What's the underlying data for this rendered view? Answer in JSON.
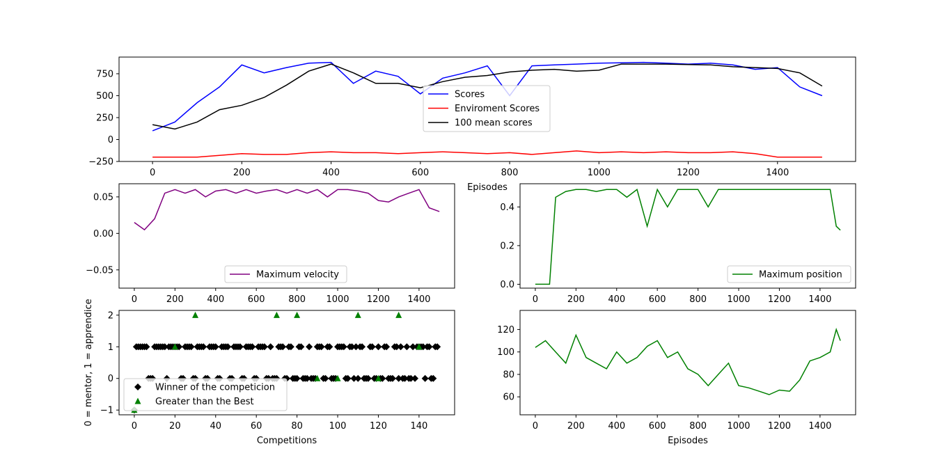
{
  "chart_data": [
    {
      "type": "line",
      "title": "",
      "xlabel": "Episodes",
      "ylabel": "",
      "xlim": [
        -75,
        1575
      ],
      "ylim": [
        -250,
        940
      ],
      "xticks": [
        0,
        200,
        400,
        600,
        800,
        1000,
        1200,
        1400
      ],
      "yticks": [
        -250,
        0,
        250,
        500,
        750
      ],
      "legend_position": "center",
      "series": [
        {
          "name": "Scores",
          "color": "#0000ff",
          "x": [
            0,
            50,
            100,
            150,
            200,
            250,
            300,
            350,
            400,
            450,
            500,
            550,
            600,
            650,
            700,
            750,
            800,
            850,
            900,
            950,
            1000,
            1050,
            1100,
            1150,
            1200,
            1250,
            1300,
            1350,
            1400,
            1450,
            1500
          ],
          "y": [
            100,
            200,
            420,
            600,
            850,
            760,
            820,
            870,
            880,
            640,
            780,
            720,
            520,
            700,
            760,
            840,
            500,
            840,
            850,
            860,
            870,
            875,
            880,
            870,
            860,
            870,
            850,
            800,
            820,
            600,
            500
          ]
        },
        {
          "name": "Enviroment Scores",
          "color": "#ff0000",
          "x": [
            0,
            50,
            100,
            150,
            200,
            250,
            300,
            350,
            400,
            450,
            500,
            550,
            600,
            650,
            700,
            750,
            800,
            850,
            900,
            950,
            1000,
            1050,
            1100,
            1150,
            1200,
            1250,
            1300,
            1350,
            1400,
            1450,
            1500
          ],
          "y": [
            -200,
            -200,
            -200,
            -180,
            -160,
            -170,
            -170,
            -150,
            -140,
            -150,
            -150,
            -160,
            -150,
            -140,
            -150,
            -160,
            -150,
            -170,
            -150,
            -130,
            -150,
            -140,
            -150,
            -140,
            -150,
            -150,
            -140,
            -160,
            -200,
            -200,
            -200
          ]
        },
        {
          "name": "100 mean scores",
          "color": "#000000",
          "x": [
            0,
            50,
            100,
            150,
            200,
            250,
            300,
            350,
            400,
            450,
            500,
            550,
            600,
            650,
            700,
            750,
            800,
            850,
            900,
            950,
            1000,
            1050,
            1100,
            1150,
            1200,
            1250,
            1300,
            1350,
            1400,
            1450,
            1500
          ],
          "y": [
            170,
            120,
            200,
            340,
            390,
            480,
            620,
            780,
            860,
            760,
            640,
            640,
            590,
            660,
            710,
            730,
            770,
            790,
            800,
            780,
            790,
            860,
            860,
            860,
            855,
            850,
            830,
            820,
            810,
            760,
            610
          ]
        }
      ]
    },
    {
      "type": "line",
      "title": "",
      "xlabel": "",
      "ylabel": "",
      "xlim": [
        -75,
        1575
      ],
      "ylim": [
        -0.075,
        0.068
      ],
      "xticks": [
        0,
        200,
        400,
        600,
        800,
        1000,
        1200,
        1400
      ],
      "yticks": [
        -0.05,
        0.0,
        0.05
      ],
      "legend_position": "lower center",
      "series": [
        {
          "name": "Maximum velocity",
          "color": "#800080",
          "x": [
            0,
            50,
            100,
            150,
            200,
            250,
            300,
            350,
            400,
            450,
            500,
            550,
            600,
            650,
            700,
            750,
            800,
            850,
            900,
            950,
            1000,
            1050,
            1100,
            1150,
            1200,
            1250,
            1300,
            1350,
            1400,
            1450,
            1500
          ],
          "y": [
            0.015,
            0.005,
            0.02,
            0.055,
            0.06,
            0.055,
            0.06,
            0.05,
            0.058,
            0.06,
            0.055,
            0.06,
            0.055,
            0.058,
            0.06,
            0.055,
            0.06,
            0.055,
            0.06,
            0.05,
            0.06,
            0.06,
            0.058,
            0.055,
            0.045,
            0.043,
            0.05,
            0.055,
            0.06,
            0.035,
            0.03
          ]
        }
      ]
    },
    {
      "type": "line",
      "title": "",
      "xlabel": "",
      "ylabel": "",
      "xlim": [
        -75,
        1575
      ],
      "ylim": [
        -0.02,
        0.52
      ],
      "xticks": [
        0,
        200,
        400,
        600,
        800,
        1000,
        1200,
        1400
      ],
      "yticks": [
        0.0,
        0.2,
        0.4
      ],
      "legend_position": "lower right",
      "series": [
        {
          "name": "Maximum position",
          "color": "#008000",
          "x": [
            0,
            50,
            70,
            100,
            150,
            200,
            250,
            300,
            350,
            400,
            450,
            500,
            550,
            600,
            650,
            700,
            750,
            800,
            850,
            900,
            950,
            1000,
            1050,
            1100,
            1150,
            1200,
            1250,
            1300,
            1350,
            1400,
            1450,
            1480,
            1500
          ],
          "y": [
            0,
            0,
            0,
            0.45,
            0.48,
            0.49,
            0.49,
            0.48,
            0.49,
            0.49,
            0.45,
            0.49,
            0.3,
            0.49,
            0.4,
            0.49,
            0.49,
            0.49,
            0.4,
            0.49,
            0.49,
            0.49,
            0.49,
            0.49,
            0.49,
            0.49,
            0.49,
            0.49,
            0.49,
            0.49,
            0.49,
            0.3,
            0.28
          ]
        }
      ]
    },
    {
      "type": "scatter",
      "title": "",
      "xlabel": "Competitions",
      "ylabel": "0 = mentor, 1 = apprendice",
      "xlim": [
        -7.5,
        157.5
      ],
      "ylim": [
        -1.15,
        2.15
      ],
      "xticks": [
        0,
        20,
        40,
        60,
        80,
        100,
        120,
        140
      ],
      "yticks": [
        -1,
        0,
        1,
        2
      ],
      "legend_position": "lower left",
      "series": [
        {
          "name": "Winner of the competicion",
          "color": "#000000",
          "marker": "D",
          "x": [
            0,
            1,
            2,
            3,
            4,
            5,
            6,
            7,
            8,
            9,
            10,
            11,
            12,
            13,
            14,
            15,
            16,
            17,
            18,
            19,
            20,
            21,
            22,
            23,
            24,
            25,
            26,
            27,
            28,
            29,
            30,
            31,
            32,
            33,
            34,
            35,
            36,
            37,
            38,
            39,
            40,
            41,
            42,
            43,
            44,
            45,
            46,
            47,
            48,
            49,
            50,
            51,
            52,
            53,
            54,
            55,
            56,
            57,
            58,
            59,
            60,
            61,
            62,
            63,
            64,
            65,
            66,
            67,
            68,
            69,
            70,
            71,
            72,
            73,
            74,
            75,
            76,
            77,
            78,
            79,
            80,
            81,
            82,
            83,
            84,
            85,
            86,
            87,
            88,
            89,
            90,
            91,
            92,
            93,
            94,
            95,
            96,
            97,
            98,
            99,
            100,
            101,
            102,
            103,
            104,
            105,
            106,
            107,
            108,
            109,
            110,
            111,
            112,
            113,
            114,
            115,
            116,
            117,
            118,
            119,
            120,
            121,
            122,
            123,
            124,
            125,
            126,
            127,
            128,
            129,
            130,
            131,
            132,
            133,
            134,
            135,
            136,
            137,
            138,
            139,
            140,
            141,
            142,
            143,
            144,
            145,
            146,
            147,
            148,
            149
          ],
          "y": [
            -1,
            1,
            1,
            1,
            1,
            1,
            1,
            0,
            0,
            0,
            1,
            1,
            1,
            1,
            1,
            1,
            0,
            1,
            1,
            1,
            1,
            1,
            1,
            0,
            0,
            1,
            1,
            1,
            1,
            0,
            0,
            1,
            1,
            1,
            1,
            0,
            0,
            1,
            1,
            1,
            1,
            0,
            0,
            1,
            1,
            1,
            1,
            0,
            0,
            1,
            1,
            1,
            1,
            0,
            0,
            1,
            1,
            1,
            1,
            0,
            0,
            1,
            1,
            1,
            1,
            0,
            0,
            1,
            0,
            0,
            0,
            1,
            1,
            1,
            0,
            0,
            1,
            1,
            0,
            0,
            0,
            1,
            1,
            0,
            0,
            0,
            1,
            0,
            0,
            0,
            1,
            1,
            1,
            0,
            0,
            1,
            1,
            0,
            0,
            0,
            1,
            1,
            1,
            1,
            0,
            0,
            1,
            1,
            0,
            1,
            0,
            1,
            1,
            0,
            0,
            0,
            1,
            1,
            0,
            0,
            1,
            0,
            0,
            1,
            1,
            0,
            0,
            0,
            1,
            1,
            0,
            1,
            0,
            0,
            1,
            0,
            0,
            1,
            0,
            1,
            1,
            1,
            1,
            0,
            1,
            1,
            0,
            0,
            1,
            1
          ]
        },
        {
          "name": "Greater than the Best",
          "color": "#008000",
          "marker": "^",
          "x": [
            0,
            20,
            30,
            70,
            80,
            90,
            100,
            110,
            120,
            130,
            140
          ],
          "y": [
            -1,
            1,
            2,
            2,
            2,
            0,
            0,
            2,
            0,
            2,
            1
          ]
        }
      ]
    },
    {
      "type": "line",
      "title": "",
      "xlabel": "Episodes",
      "ylabel": "",
      "xlim": [
        -75,
        1575
      ],
      "ylim": [
        44,
        137
      ],
      "xticks": [
        0,
        200,
        400,
        600,
        800,
        1000,
        1200,
        1400
      ],
      "yticks": [
        60,
        80,
        100,
        120
      ],
      "legend_position": "",
      "series": [
        {
          "name": "",
          "color": "#008000",
          "x": [
            0,
            50,
            100,
            150,
            200,
            250,
            300,
            350,
            400,
            450,
            500,
            550,
            600,
            650,
            700,
            750,
            800,
            850,
            900,
            950,
            1000,
            1050,
            1100,
            1150,
            1200,
            1250,
            1300,
            1350,
            1400,
            1450,
            1480,
            1500
          ],
          "y": [
            104,
            110,
            100,
            90,
            115,
            95,
            90,
            85,
            100,
            90,
            95,
            105,
            110,
            95,
            100,
            85,
            80,
            70,
            80,
            90,
            70,
            68,
            65,
            62,
            66,
            65,
            75,
            92,
            95,
            100,
            120,
            110
          ]
        }
      ]
    }
  ]
}
